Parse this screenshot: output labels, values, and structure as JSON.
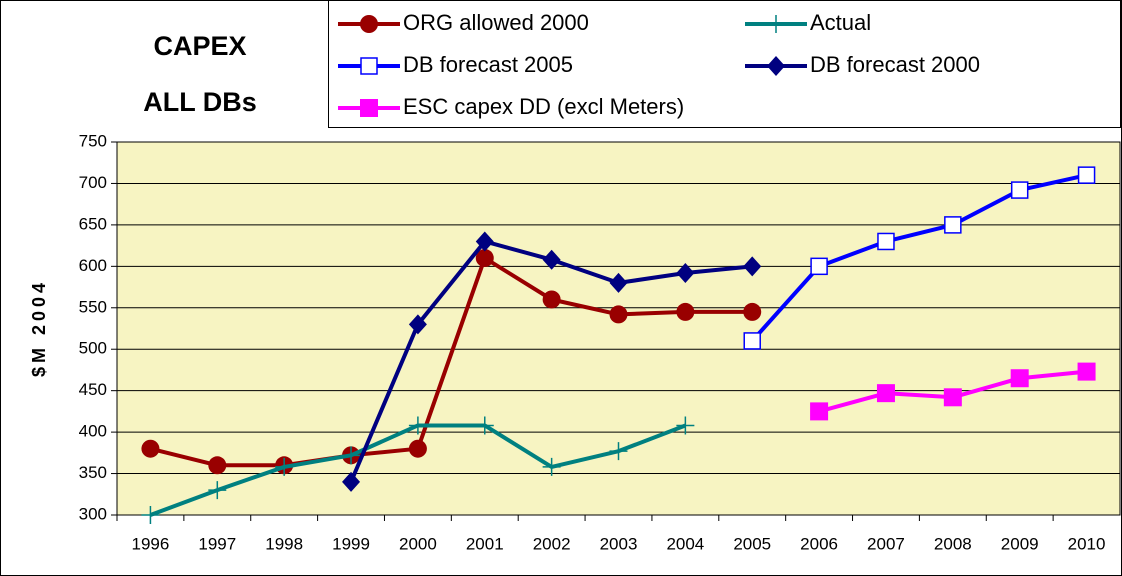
{
  "chart_data": {
    "type": "line",
    "title": [
      "CAPEX",
      "ALL DBs"
    ],
    "y_label": "$M 2004",
    "categories": [
      "1996",
      "1997",
      "1998",
      "1999",
      "2000",
      "2001",
      "2002",
      "2003",
      "2004",
      "2005",
      "2006",
      "2007",
      "2008",
      "2009",
      "2010"
    ],
    "series": [
      {
        "name": "ORG allowed 2000",
        "color": "#990000",
        "marker": "circle",
        "values": [
          380,
          360,
          360,
          372,
          380,
          610,
          560,
          542,
          545,
          545,
          null,
          null,
          null,
          null,
          null
        ]
      },
      {
        "name": "Actual",
        "color": "#008080",
        "marker": "plus",
        "values": [
          300,
          330,
          358,
          372,
          408,
          408,
          358,
          377,
          408,
          null,
          null,
          null,
          null,
          null,
          null
        ]
      },
      {
        "name": "DB forecast 2005",
        "color": "#0000ff",
        "marker": "open-square",
        "values": [
          null,
          null,
          null,
          null,
          null,
          null,
          null,
          null,
          null,
          510,
          600,
          630,
          650,
          692,
          710
        ]
      },
      {
        "name": "DB forecast 2000",
        "color": "#000080",
        "marker": "diamond",
        "values": [
          null,
          null,
          null,
          340,
          530,
          630,
          608,
          580,
          592,
          600,
          null,
          null,
          null,
          null,
          null
        ]
      },
      {
        "name": "ESC capex DD (excl Meters)",
        "color": "#ff00ff",
        "marker": "square",
        "values": [
          null,
          null,
          null,
          null,
          null,
          null,
          null,
          null,
          null,
          null,
          425,
          447,
          442,
          465,
          473
        ]
      }
    ],
    "ylim": [
      300,
      750
    ],
    "yticks": [
      300,
      350,
      400,
      450,
      500,
      550,
      600,
      650,
      700,
      750
    ],
    "grid": true,
    "plot_background": "#f7f4c2"
  }
}
